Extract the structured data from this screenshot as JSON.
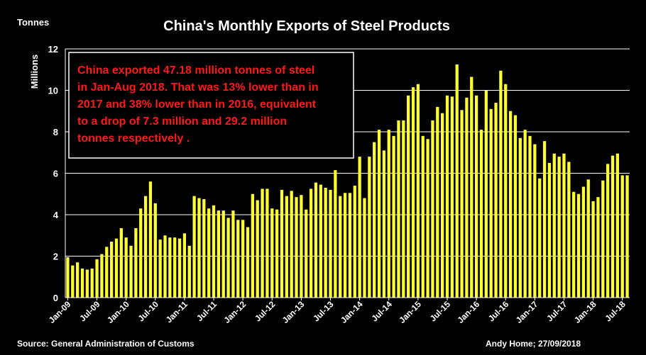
{
  "chart_data": {
    "type": "bar",
    "title": "China's Monthly Exports of Steel Products",
    "unit_label": "Tonnes",
    "ylabel": "Millions",
    "ylim": [
      0,
      12
    ],
    "yticks": [
      0,
      2,
      4,
      6,
      8,
      10,
      12
    ],
    "grid": true,
    "bar_color": "#ffff33",
    "annotation_color": "#ff1a1a",
    "annotation_lines": [
      "China exported 47.18 million tonnes of steel",
      "in Jan-Aug 2018. That was 13% lower than in",
      "2017 and 38% lower than in 2016, equivalent",
      "to a drop of 7.3 million and 29.2 million",
      "tonnes respectively ."
    ],
    "source": "Source: General Administration of Customs",
    "credit": "Andy Home; 27/09/2018",
    "xtick_labels": [
      "Jan-09",
      "Jul-09",
      "Jan-10",
      "Jul-10",
      "Jan-11",
      "Jul-11",
      "Jan-12",
      "Jul-12",
      "Jan-13",
      "Jul-13",
      "Jan-14",
      "Jul-14",
      "Jan-15",
      "Jul-15",
      "Jan-16",
      "Jul-16",
      "Jan-17",
      "Jul-17",
      "Jan-18",
      "Jul-18"
    ],
    "categories": [
      "Jan-09",
      "Feb-09",
      "Mar-09",
      "Apr-09",
      "May-09",
      "Jun-09",
      "Jul-09",
      "Aug-09",
      "Sep-09",
      "Oct-09",
      "Nov-09",
      "Dec-09",
      "Jan-10",
      "Feb-10",
      "Mar-10",
      "Apr-10",
      "May-10",
      "Jun-10",
      "Jul-10",
      "Aug-10",
      "Sep-10",
      "Oct-10",
      "Nov-10",
      "Dec-10",
      "Jan-11",
      "Feb-11",
      "Mar-11",
      "Apr-11",
      "May-11",
      "Jun-11",
      "Jul-11",
      "Aug-11",
      "Sep-11",
      "Oct-11",
      "Nov-11",
      "Dec-11",
      "Jan-12",
      "Feb-12",
      "Mar-12",
      "Apr-12",
      "May-12",
      "Jun-12",
      "Jul-12",
      "Aug-12",
      "Sep-12",
      "Oct-12",
      "Nov-12",
      "Dec-12",
      "Jan-13",
      "Feb-13",
      "Mar-13",
      "Apr-13",
      "May-13",
      "Jun-13",
      "Jul-13",
      "Aug-13",
      "Sep-13",
      "Oct-13",
      "Nov-13",
      "Dec-13",
      "Jan-14",
      "Feb-14",
      "Mar-14",
      "Apr-14",
      "May-14",
      "Jun-14",
      "Jul-14",
      "Aug-14",
      "Sep-14",
      "Oct-14",
      "Nov-14",
      "Dec-14",
      "Jan-15",
      "Feb-15",
      "Mar-15",
      "Apr-15",
      "May-15",
      "Jun-15",
      "Jul-15",
      "Aug-15",
      "Sep-15",
      "Oct-15",
      "Nov-15",
      "Dec-15",
      "Jan-16",
      "Feb-16",
      "Mar-16",
      "Apr-16",
      "May-16",
      "Jun-16",
      "Jul-16",
      "Aug-16",
      "Sep-16",
      "Oct-16",
      "Nov-16",
      "Dec-16",
      "Jan-17",
      "Feb-17",
      "Mar-17",
      "Apr-17",
      "May-17",
      "Jun-17",
      "Jul-17",
      "Aug-17",
      "Sep-17",
      "Oct-17",
      "Nov-17",
      "Dec-17",
      "Jan-18",
      "Feb-18",
      "Mar-18",
      "Apr-18",
      "May-18",
      "Jun-18",
      "Jul-18",
      "Aug-18"
    ],
    "values": [
      1.95,
      1.55,
      1.7,
      1.4,
      1.35,
      1.4,
      1.85,
      2.1,
      2.45,
      2.7,
      2.85,
      3.35,
      2.9,
      2.5,
      3.35,
      4.3,
      4.9,
      5.6,
      4.55,
      2.8,
      3.0,
      2.9,
      2.9,
      2.85,
      3.1,
      2.5,
      4.9,
      4.8,
      4.75,
      4.3,
      4.45,
      4.2,
      4.2,
      3.85,
      4.2,
      3.75,
      3.75,
      3.4,
      5.0,
      4.7,
      5.25,
      5.25,
      4.3,
      4.25,
      5.2,
      4.9,
      5.15,
      4.85,
      4.95,
      4.25,
      5.25,
      5.55,
      5.45,
      5.3,
      5.2,
      6.15,
      4.9,
      5.05,
      5.05,
      5.4,
      6.8,
      4.8,
      6.8,
      7.5,
      8.1,
      7.1,
      8.1,
      7.8,
      8.55,
      8.55,
      9.75,
      10.15,
      10.3,
      7.8,
      7.65,
      8.55,
      9.2,
      8.9,
      9.75,
      9.7,
      11.25,
      9.05,
      9.65,
      10.65,
      9.75,
      8.1,
      10.0,
      9.1,
      9.4,
      10.95,
      10.3,
      9.0,
      8.8,
      7.7,
      8.1,
      7.8,
      7.4,
      5.75,
      7.55,
      6.5,
      6.95,
      6.8,
      6.95,
      6.55,
      5.1,
      5.0,
      5.35,
      5.7,
      4.65,
      4.85,
      5.65,
      6.45,
      6.85,
      6.95,
      5.9,
      5.9
    ]
  }
}
